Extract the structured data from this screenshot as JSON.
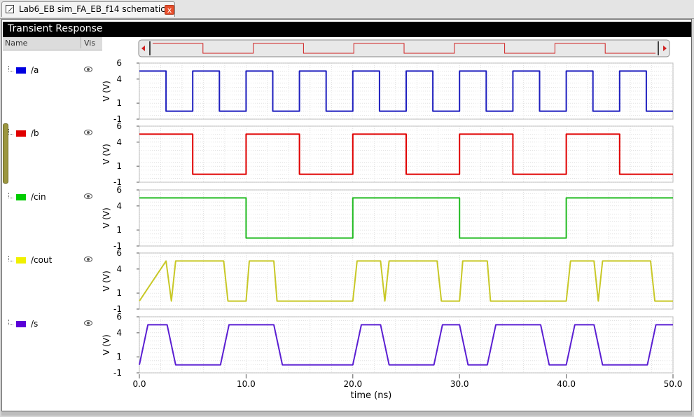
{
  "tab": {
    "title": "Lab6_EB sim_FA_EB_f14 schematic",
    "close_label": "x"
  },
  "panel": {
    "title": "Transient Response"
  },
  "columns": {
    "name": "Name",
    "vis": "Vis"
  },
  "signals": [
    {
      "name": "/a",
      "color": "#0000e0"
    },
    {
      "name": "/b",
      "color": "#e00000"
    },
    {
      "name": "/cin",
      "color": "#00cc00"
    },
    {
      "name": "/cout",
      "color": "#f0f000"
    },
    {
      "name": "/s",
      "color": "#5a00d8"
    }
  ],
  "chart_data": {
    "type": "line",
    "xlabel": "time (ns)",
    "ylabel": "V (V)",
    "xlim": [
      0,
      50
    ],
    "ylim": [
      -1,
      6
    ],
    "x_ticks": [
      "0.0",
      "10.0",
      "20.0",
      "30.0",
      "40.0",
      "50.0"
    ],
    "y_ticks": [
      "6",
      "4",
      "1",
      "-1"
    ],
    "grid": true,
    "series": [
      {
        "name": "/a",
        "color": "#1f1fbf",
        "x": [
          0,
          2.5,
          2.5,
          5,
          5,
          7.5,
          7.5,
          10,
          10,
          12.5,
          12.5,
          15,
          15,
          17.5,
          17.5,
          20,
          20,
          22.5,
          22.5,
          25,
          25,
          27.5,
          27.5,
          30,
          30,
          32.5,
          32.5,
          35,
          35,
          37.5,
          37.5,
          40,
          40,
          42.5,
          42.5,
          45,
          45,
          47.5,
          47.5,
          50
        ],
        "y": [
          5,
          5,
          0,
          0,
          5,
          5,
          0,
          0,
          5,
          5,
          0,
          0,
          5,
          5,
          0,
          0,
          5,
          5,
          0,
          0,
          5,
          5,
          0,
          0,
          5,
          5,
          0,
          0,
          5,
          5,
          0,
          0,
          5,
          5,
          0,
          0,
          5,
          5,
          0,
          0
        ]
      },
      {
        "name": "/b",
        "color": "#e00000",
        "x": [
          0,
          5,
          5,
          10,
          10,
          15,
          15,
          20,
          20,
          25,
          25,
          30,
          30,
          35,
          35,
          40,
          40,
          45,
          45,
          50
        ],
        "y": [
          5,
          5,
          0,
          0,
          5,
          5,
          0,
          0,
          5,
          5,
          0,
          0,
          5,
          5,
          0,
          0,
          5,
          5,
          0,
          0
        ]
      },
      {
        "name": "/cin",
        "color": "#22bb22",
        "x": [
          0,
          10,
          10,
          20,
          20,
          30,
          30,
          40,
          40,
          50
        ],
        "y": [
          5,
          5,
          0,
          0,
          5,
          5,
          0,
          0,
          5,
          5
        ]
      },
      {
        "name": "/cout",
        "color": "#c8c826",
        "x": [
          0,
          2.5,
          3,
          3.4,
          7.9,
          8.3,
          10,
          10.3,
          12.6,
          12.9,
          20,
          20.4,
          22.6,
          23,
          23.4,
          27.9,
          28.3,
          30,
          30.3,
          32.6,
          32.9,
          40,
          40.4,
          42.6,
          43,
          43.4,
          47.9,
          48.3,
          50
        ],
        "y": [
          0,
          5,
          0,
          5,
          5,
          0,
          0,
          5,
          5,
          0,
          0,
          5,
          5,
          0,
          5,
          5,
          0,
          0,
          5,
          5,
          0,
          0,
          5,
          5,
          0,
          5,
          5,
          0,
          0
        ]
      },
      {
        "name": "/s",
        "color": "#5a1ed2",
        "x": [
          0,
          0.8,
          2.6,
          3.4,
          7.6,
          8.4,
          12.6,
          13.4,
          20,
          20.8,
          22.6,
          23.4,
          27.6,
          28.4,
          30,
          30.8,
          32.6,
          33.4,
          37.6,
          38.4,
          40,
          40.8,
          42.6,
          43.4,
          47.6,
          48.4,
          50
        ],
        "y": [
          0,
          5,
          5,
          0,
          0,
          5,
          5,
          0,
          0,
          5,
          5,
          0,
          0,
          5,
          5,
          0,
          0,
          5,
          5,
          0,
          0,
          5,
          5,
          0,
          0,
          5,
          5
        ]
      }
    ]
  }
}
